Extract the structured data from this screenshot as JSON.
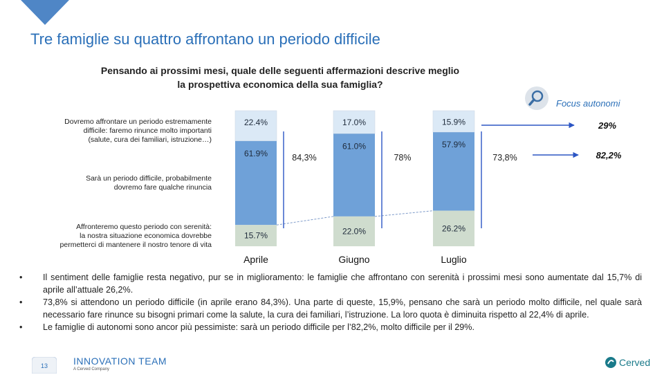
{
  "title": "Tre famiglie su quattro affrontano un periodo difficile",
  "question": {
    "line1": "Pensando ai prossimi mesi, quale delle seguenti affermazioni descrive meglio",
    "line2": "la prospettiva economica della sua famiglia?"
  },
  "focus": {
    "label": "Focus autonomi",
    "icon": "search-icon"
  },
  "row_labels": [
    [
      "Dovremo affrontare un periodo estremamente",
      "difficile: faremo rinunce molto importanti",
      "(salute, cura dei familiari, istruzione…)"
    ],
    [
      "Sarà un periodo difficile, probabilmente",
      "dovremo fare qualche rinuncia"
    ],
    [
      "Affronteremo questo periodo con serenità:",
      "la nostra situazione economica dovrebbe",
      "permetterci di mantenere il nostro tenore di vita"
    ]
  ],
  "chart_data": {
    "type": "bar",
    "stacked": true,
    "categories": [
      "Aprile",
      "Giugno",
      "Luglio"
    ],
    "series": [
      {
        "name": "Periodo estremamente difficile",
        "color": "#dbe9f6",
        "values": [
          22.4,
          17.0,
          15.9
        ],
        "labels": [
          "22.4%",
          "17.0%",
          "15.9%"
        ]
      },
      {
        "name": "Periodo difficile",
        "color": "#6fa1d8",
        "values": [
          61.9,
          61.0,
          57.9
        ],
        "labels": [
          "61.9%",
          "61.0%",
          "57.9%"
        ]
      },
      {
        "name": "Serenità",
        "color": "#cfdcce",
        "values": [
          15.7,
          22.0,
          26.2
        ],
        "labels": [
          "15.7%",
          "22.0%",
          "26.2%"
        ]
      }
    ],
    "difficult_totals": [
      "84,3%",
      "78%",
      "73,8%"
    ],
    "autonomi": {
      "very_difficult": "29%",
      "difficult_total": "82,2%"
    }
  },
  "bullets": [
    "Il sentiment delle famiglie resta negativo, pur se in miglioramento: le famiglie che affrontano con serenità i prossimi mesi sono aumentate dal 15,7% di aprile all’attuale 26,2%.",
    "73,8% si attendono un periodo difficile (in aprile erano 84,3%). Una parte di queste, 15,9%, pensano che sarà un periodo molto difficile, nel quale sarà necessario fare rinunce su bisogni primari come la salute, la cura dei familiari, l’istruzione. La loro quota è diminuita rispetto al 22,4% di aprile.",
    "Le famiglie di autonomi sono ancor più pessimiste: sarà un periodo difficile per l’82,2%, molto difficile per il 29%."
  ],
  "bullet_symbol": "•",
  "footer": {
    "page": "13",
    "company": "INNOVATION TEAM",
    "company_sub": "A Cerved Company",
    "brand": "Cerved"
  },
  "colors": {
    "accent": "#2a6fb8",
    "bar_dark": "#6fa1d8",
    "bar_light": "#dbe9f6",
    "bar_green": "#cfdcce",
    "arrow": "#2b55c4"
  }
}
